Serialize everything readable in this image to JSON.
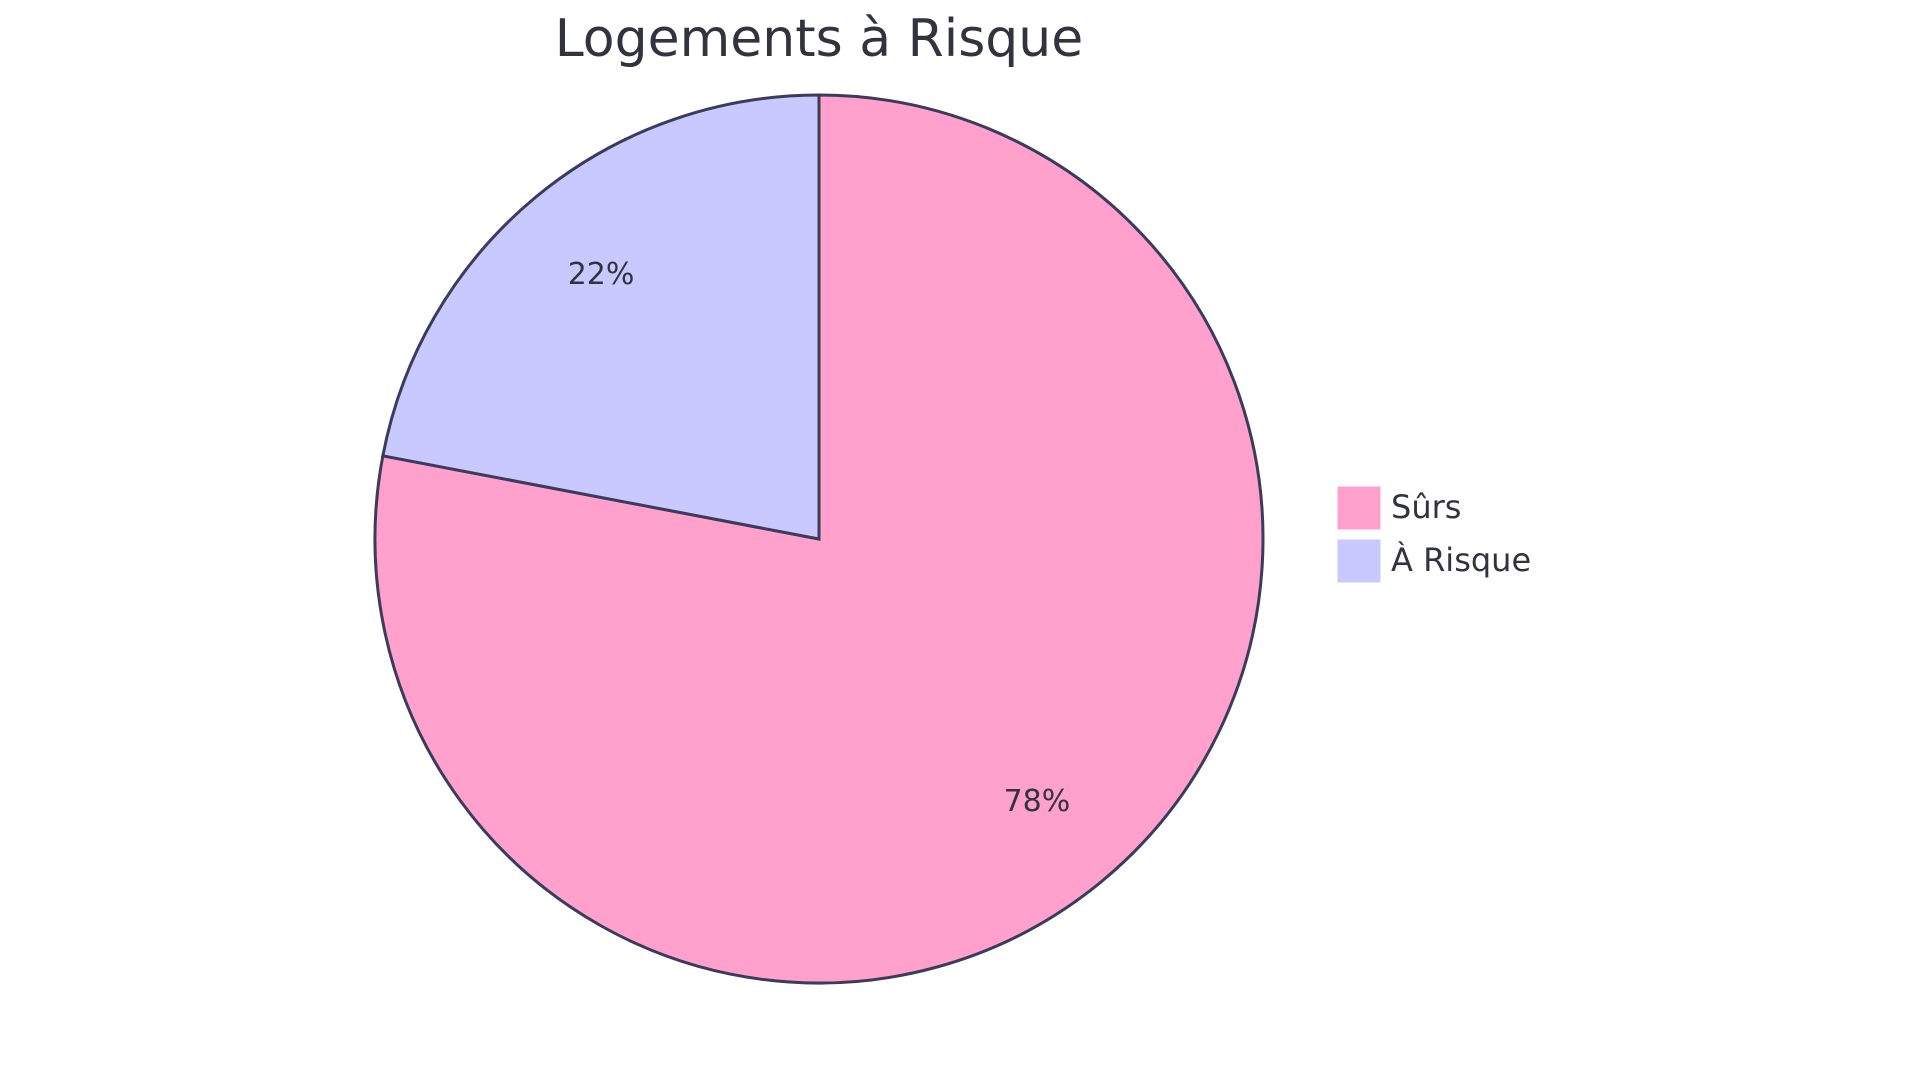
{
  "chart_data": {
    "type": "pie",
    "title": "Logements à Risque",
    "categories": [
      "Sûrs",
      "À Risque"
    ],
    "values": [
      78,
      22
    ],
    "value_labels": [
      "78%",
      "22%"
    ],
    "colors": [
      "#ffa1cc",
      "#c9c9ff"
    ],
    "legend": "right"
  }
}
